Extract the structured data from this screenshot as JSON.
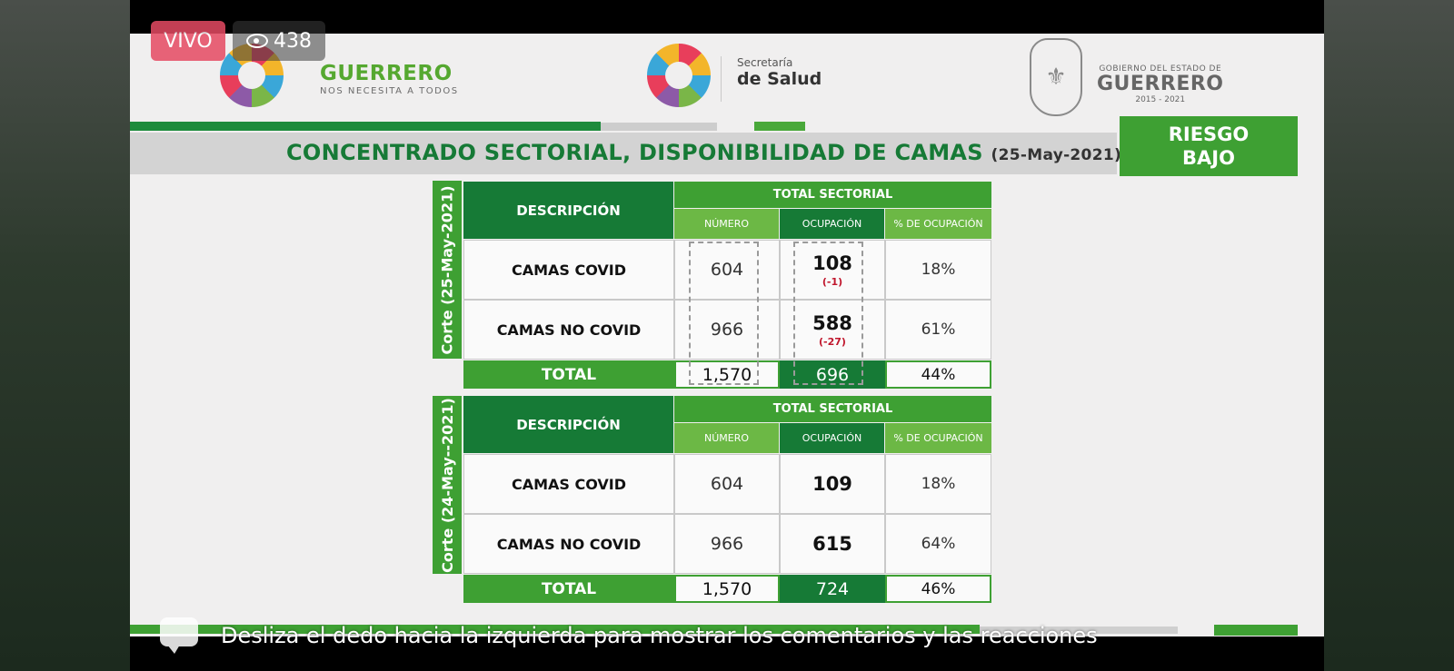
{
  "live": {
    "label": "VIVO",
    "viewers": "438"
  },
  "header": {
    "brand_name": "GUERRERO",
    "brand_tagline": "NOS NECESITA A TODOS",
    "salud_small": "Secretaría",
    "salud_big": "de Salud",
    "gob_line1": "GOBIERNO DEL ESTADO DE",
    "gob_line2": "GUERRERO",
    "gob_line3": "2015 - 2021"
  },
  "title": {
    "text": "CONCENTRADO SECTORIAL, DISPONIBILIDAD DE CAMAS",
    "date": "(25-May-2021)"
  },
  "riesgo": {
    "line1": "RIESGO",
    "line2": "BAJO"
  },
  "tables": [
    {
      "corte": "Corte (25-May-2021)",
      "desc_header": "DESCRIPCIÓN",
      "total_header": "TOTAL SECTORIAL",
      "col_numero": "NÚMERO",
      "col_ocupacion": "OCUPACIÓN",
      "col_pct": "% DE OCUPACIÓN",
      "rows": [
        {
          "label": "CAMAS COVID",
          "numero": "604",
          "ocupacion": "108",
          "delta": "(-1)",
          "pct": "18%"
        },
        {
          "label": "CAMAS NO COVID",
          "numero": "966",
          "ocupacion": "588",
          "delta": "(-27)",
          "pct": "61%"
        }
      ],
      "total": {
        "label": "TOTAL",
        "numero": "1,570",
        "ocupacion": "696",
        "pct": "44%"
      }
    },
    {
      "corte": "Corte (24-May--2021)",
      "desc_header": "DESCRIPCIÓN",
      "total_header": "TOTAL SECTORIAL",
      "col_numero": "NÚMERO",
      "col_ocupacion": "OCUPACIÓN",
      "col_pct": "% DE OCUPACIÓN",
      "rows": [
        {
          "label": "CAMAS COVID",
          "numero": "604",
          "ocupacion": "109",
          "pct": "18%"
        },
        {
          "label": "CAMAS NO COVID",
          "numero": "966",
          "ocupacion": "615",
          "pct": "64%"
        }
      ],
      "total": {
        "label": "TOTAL",
        "numero": "1,570",
        "ocupacion": "724",
        "pct": "46%"
      }
    }
  ],
  "caption": "Desliza el dedo hacia la izquierda para mostrar los comentarios y las reacciones",
  "colors": {
    "green_dark": "#167a36",
    "green": "#3ea033",
    "green_light": "#6cb845",
    "live_red": "#e64a63"
  }
}
